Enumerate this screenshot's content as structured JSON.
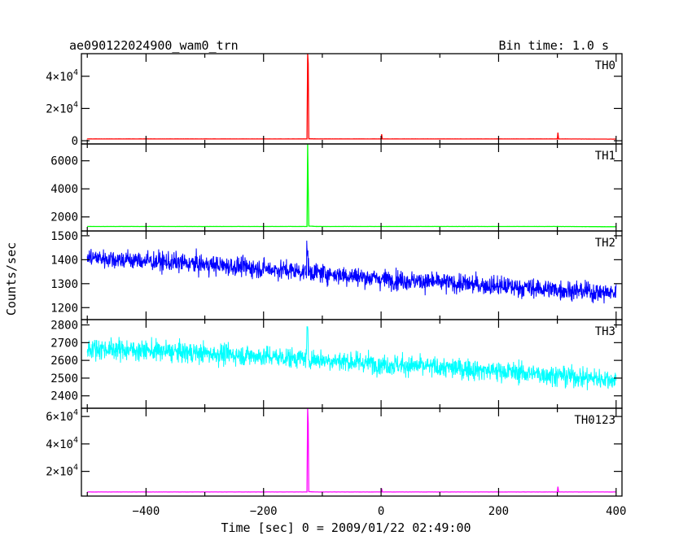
{
  "chart_data": {
    "type": "line",
    "title": "ae090122024900_wam0_trn",
    "subtitle": "Bin time: 1.0 s",
    "xlabel": "Time [sec] 0 = 2009/01/22 02:49:00",
    "ylabel": "Counts/sec",
    "xlim": [
      -510,
      410
    ],
    "x_ticks": [
      -400,
      -200,
      0,
      200,
      400
    ],
    "x_tick_labels": [
      "−400",
      "−200",
      "0",
      "200",
      "400"
    ],
    "panels": [
      {
        "name": "TH0",
        "color": "#ff0000",
        "ylim": [
          -2000,
          54000
        ],
        "y_ticks": [
          0,
          20000,
          40000
        ],
        "y_tick_labels": [
          {
            "mant": "0",
            "exp": ""
          },
          {
            "mant": "2×10",
            "exp": "4"
          },
          {
            "mant": "4×10",
            "exp": "4"
          }
        ],
        "series": [
          {
            "x": [
              -500,
              -140,
              -126,
              -125,
              -124,
              -123,
              -110,
              0,
              1,
              2,
              300,
              301,
              302,
              400
            ],
            "y": [
              1100,
              1100,
              1100,
              54000,
              48000,
              1200,
              1100,
              1100,
              4000,
              1100,
              1100,
              5000,
              1100,
              1000
            ]
          }
        ]
      },
      {
        "name": "TH1",
        "color": "#00ff00",
        "ylim": [
          1000,
          7200
        ],
        "y_ticks": [
          2000,
          4000,
          6000
        ],
        "y_tick_labels": [
          {
            "mant": "2000",
            "exp": ""
          },
          {
            "mant": "4000",
            "exp": ""
          },
          {
            "mant": "6000",
            "exp": ""
          }
        ],
        "series": [
          {
            "x": [
              -500,
              -126,
              -125,
              -124,
              -123,
              -110,
              0,
              300,
              400
            ],
            "y": [
              1320,
              1320,
              7200,
              4200,
              1350,
              1320,
              1320,
              1320,
              1300
            ]
          }
        ]
      },
      {
        "name": "TH2",
        "color": "#0000ff",
        "ylim": [
          1150,
          1520
        ],
        "y_ticks": [
          1200,
          1300,
          1400,
          1500
        ],
        "y_tick_labels": [
          {
            "mant": "1200",
            "exp": ""
          },
          {
            "mant": "1300",
            "exp": ""
          },
          {
            "mant": "1400",
            "exp": ""
          },
          {
            "mant": "1500",
            "exp": ""
          }
        ],
        "series": [
          {
            "x": [
              -500,
              -300,
              -125,
              0,
              200,
              400
            ],
            "y": [
              1410,
              1380,
              1350,
              1320,
              1290,
              1260
            ]
          }
        ]
      },
      {
        "name": "TH3",
        "color": "#00ffff",
        "ylim": [
          2330,
          2830
        ],
        "y_ticks": [
          2400,
          2500,
          2600,
          2700,
          2800
        ],
        "y_tick_labels": [
          {
            "mant": "2400",
            "exp": ""
          },
          {
            "mant": "2500",
            "exp": ""
          },
          {
            "mant": "2600",
            "exp": ""
          },
          {
            "mant": "2700",
            "exp": ""
          },
          {
            "mant": "2800",
            "exp": ""
          }
        ],
        "series": [
          {
            "x": [
              -500,
              -300,
              -125,
              0,
              200,
              400
            ],
            "y": [
              2670,
              2640,
              2610,
              2580,
              2540,
              2490
            ]
          }
        ]
      },
      {
        "name": "TH0123",
        "color": "#ff00ff",
        "ylim": [
          2000,
          66000
        ],
        "y_ticks": [
          20000,
          40000,
          60000
        ],
        "y_tick_labels": [
          {
            "mant": "2×10",
            "exp": "4"
          },
          {
            "mant": "4×10",
            "exp": "4"
          },
          {
            "mant": "6×10",
            "exp": "4"
          }
        ],
        "series": [
          {
            "x": [
              -500,
              -126,
              -125,
              -124,
              -123,
              -110,
              0,
              1,
              2,
              300,
              301,
              302,
              400
            ],
            "y": [
              5000,
              5000,
              66000,
              55000,
              5200,
              5000,
              5000,
              7500,
              5000,
              5000,
              8800,
              5000,
              5000
            ]
          }
        ]
      }
    ]
  }
}
